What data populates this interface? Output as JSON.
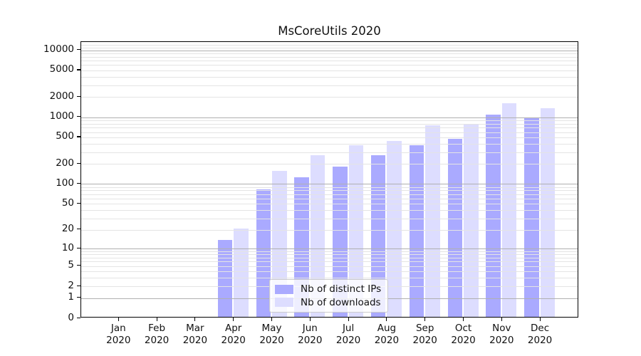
{
  "chart_data": {
    "type": "bar",
    "title": "MsCoreUtils 2020",
    "categories": [
      "Jan 2020",
      "Feb 2020",
      "Mar 2020",
      "Apr 2020",
      "May 2020",
      "Jun 2020",
      "Jul 2020",
      "Aug 2020",
      "Sep 2020",
      "Oct 2020",
      "Nov 2020",
      "Dec 2020"
    ],
    "series": [
      {
        "key": "ips",
        "name": "Nb of distinct IPs",
        "color": "#aaaaff",
        "values": [
          0,
          0,
          0,
          13,
          78,
          120,
          175,
          260,
          365,
          450,
          1050,
          920
        ]
      },
      {
        "key": "downloads",
        "name": "Nb of downloads",
        "color": "#ddddff",
        "values": [
          0,
          0,
          0,
          20,
          150,
          260,
          365,
          420,
          720,
          760,
          1550,
          1300
        ]
      }
    ],
    "xlabel": "",
    "ylabel": "",
    "yscale": "log1p",
    "ylim": [
      0,
      13000
    ],
    "yticks": [
      0,
      1,
      2,
      5,
      10,
      20,
      50,
      100,
      200,
      500,
      1000,
      2000,
      5000,
      10000
    ],
    "major_gridlines": [
      1,
      10,
      100,
      1000,
      10000
    ],
    "grid": "both",
    "gridlines_over_bars": true,
    "legend_position": "lower center",
    "colors": {
      "bar_ips": "#aaaaff",
      "bar_downloads": "#ddddff",
      "major_grid": "#b0b0b0",
      "minor_grid": "#e4e4e4",
      "axis": "#000000",
      "text": "#111111",
      "legend_border": "#cccccc"
    }
  }
}
